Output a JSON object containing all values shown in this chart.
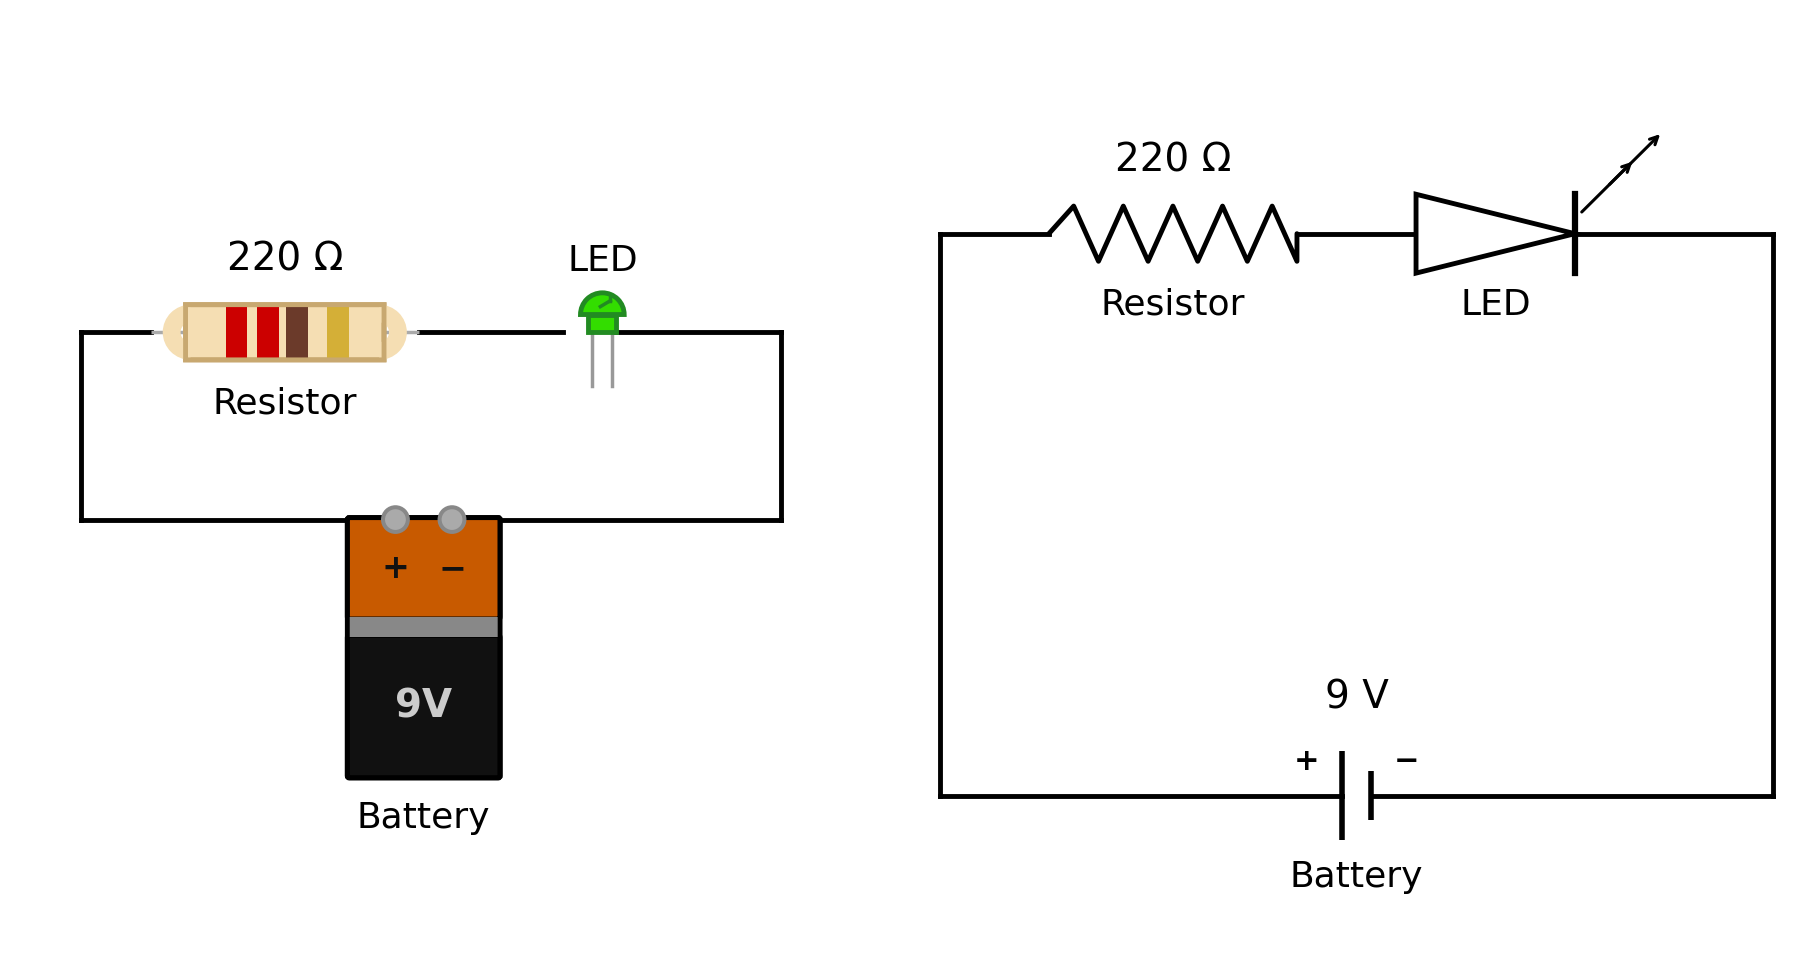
{
  "bg_color": "#ffffff",
  "line_color": "#000000",
  "line_width": 3.5,
  "font_size_label": 26,
  "font_size_value": 28,
  "font_size_9v": 32,
  "left_circuit": {
    "resistor_label": "220 Ω",
    "resistor_sublabel": "Resistor",
    "led_label": "LED",
    "battery_label": "Battery",
    "battery_text": "9V"
  },
  "right_circuit": {
    "resistor_label": "220 Ω",
    "resistor_sublabel": "Resistor",
    "led_label": "LED",
    "battery_label": "Battery",
    "battery_text": "9 V"
  },
  "resistor_body_color": "#F5DEB3",
  "resistor_edge_color": "#C8A870",
  "resistor_bands": [
    "#CC0000",
    "#CC0000",
    "#6B3A2A",
    "#D4AF37"
  ],
  "resistor_lead_color": "#AAAAAA",
  "led_green_light": "#33DD00",
  "led_green_dark": "#228B22",
  "led_lead_color": "#999999",
  "battery_orange": "#C85A00",
  "battery_black": "#111111",
  "battery_gray": "#888888",
  "battery_terminal_color": "#AAAAAA",
  "battery_text_color": "#CCCCCC"
}
